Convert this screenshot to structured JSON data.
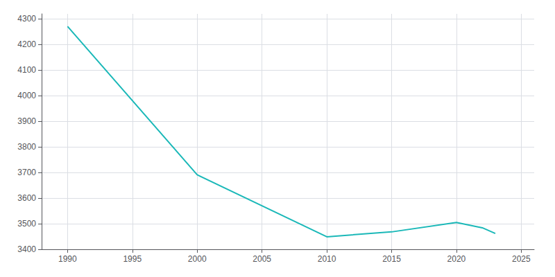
{
  "chart_data": {
    "type": "line",
    "x": [
      1990,
      2000,
      2010,
      2015,
      2020,
      2022,
      2023
    ],
    "values": [
      4271,
      3691,
      3449,
      3468,
      3505,
      3484,
      3462
    ],
    "color": "#1ab8b8",
    "xlim": [
      1988,
      2026
    ],
    "xticks": [
      1990,
      1995,
      2000,
      2005,
      2010,
      2015,
      2020,
      2025
    ],
    "ylim": [
      3400,
      4320
    ],
    "yticks": [
      3400,
      3500,
      3600,
      3700,
      3800,
      3900,
      4000,
      4100,
      4200,
      4300
    ],
    "grid": true
  }
}
